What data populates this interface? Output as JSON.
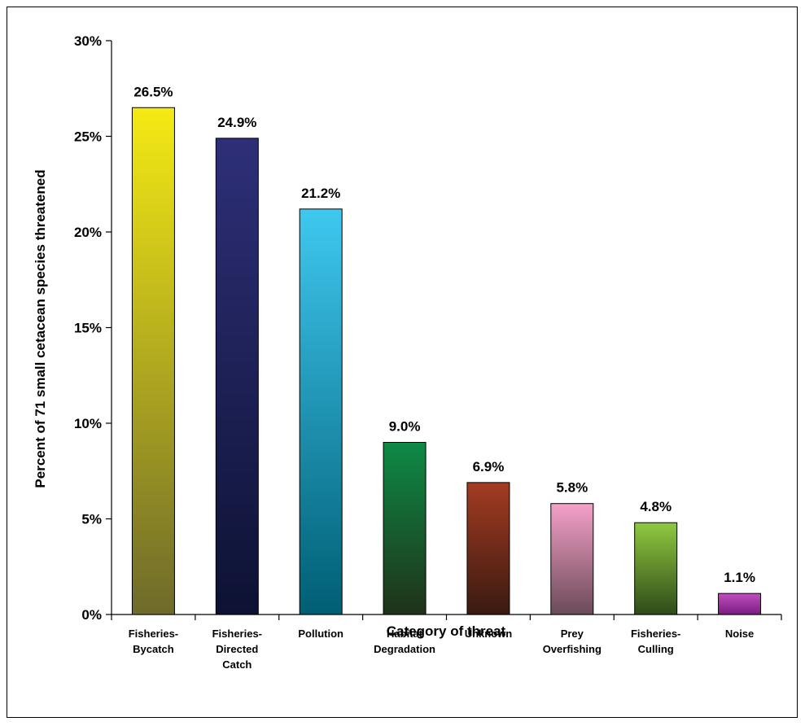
{
  "chart_data": {
    "type": "bar",
    "title": "",
    "xlabel": "Category of threat",
    "ylabel": "Percent of 71 small cetacean species threatened",
    "ylim": [
      0,
      30
    ],
    "yticks": [
      "0%",
      "5%",
      "10%",
      "15%",
      "20%",
      "25%",
      "30%"
    ],
    "grid": false,
    "legend": "none",
    "categories": [
      [
        "Fisheries-",
        "Bycatch"
      ],
      [
        "Fisheries-",
        "Directed",
        "Catch"
      ],
      [
        "Pollution"
      ],
      [
        "Habitat",
        "Degradation"
      ],
      [
        "Unknown"
      ],
      [
        "Prey",
        "Overfishing"
      ],
      [
        "Fisheries-",
        "Culling"
      ],
      [
        "Noise"
      ]
    ],
    "values": [
      26.5,
      24.9,
      21.2,
      9.0,
      6.9,
      5.8,
      4.8,
      1.1
    ],
    "data_labels": [
      "26.5%",
      "24.9%",
      "21.2%",
      "9.0%",
      "6.9%",
      "5.8%",
      "4.8%",
      "1.1%"
    ],
    "colors": [
      [
        "#f5ea14",
        "#6e6a2a"
      ],
      [
        "#2e2f78",
        "#0d1233"
      ],
      [
        "#3fc8f0",
        "#005e74"
      ],
      [
        "#0e8a45",
        "#1f3219"
      ],
      [
        "#a33b22",
        "#3a1a10"
      ],
      [
        "#f5a0c8",
        "#6a4a58"
      ],
      [
        "#90c840",
        "#2e4a1a"
      ],
      [
        "#c050c0",
        "#7a1a80"
      ]
    ]
  }
}
